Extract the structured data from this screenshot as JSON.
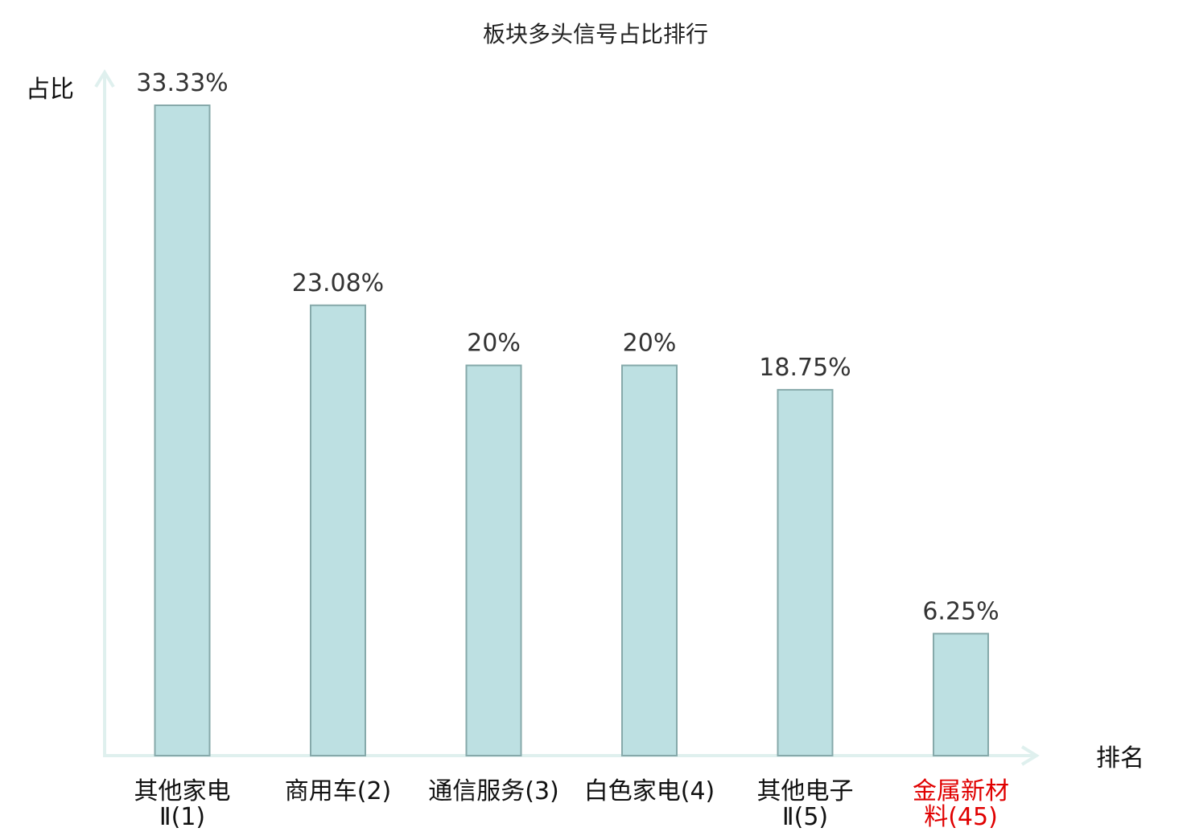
{
  "chart_data": {
    "type": "bar",
    "title": "板块多头信号占比排行",
    "ylabel": "占比",
    "xlabel": "排名",
    "ylim": [
      0,
      35
    ],
    "grid": false,
    "categories": [
      {
        "line1": "其他家电",
        "line2": "Ⅱ(1)",
        "highlight": false
      },
      {
        "line1": "商用车(2)",
        "line2": "",
        "highlight": false
      },
      {
        "line1": "通信服务(3)",
        "line2": "",
        "highlight": false
      },
      {
        "line1": "白色家电(4)",
        "line2": "",
        "highlight": false
      },
      {
        "line1": "其他电子",
        "line2": "Ⅱ(5)",
        "highlight": false
      },
      {
        "line1": "金属新材",
        "line2": "料(45)",
        "highlight": true
      }
    ],
    "values": [
      33.33,
      23.08,
      20,
      20,
      18.75,
      6.25
    ],
    "value_labels": [
      "33.33%",
      "23.08%",
      "20%",
      "20%",
      "18.75%",
      "6.25%"
    ],
    "colors": {
      "bar_fill": "#bde0e2",
      "bar_stroke": "#86a9aa",
      "axis": "#dff0ee",
      "highlight_text": "#e00000",
      "normal_text": "#111111"
    }
  }
}
